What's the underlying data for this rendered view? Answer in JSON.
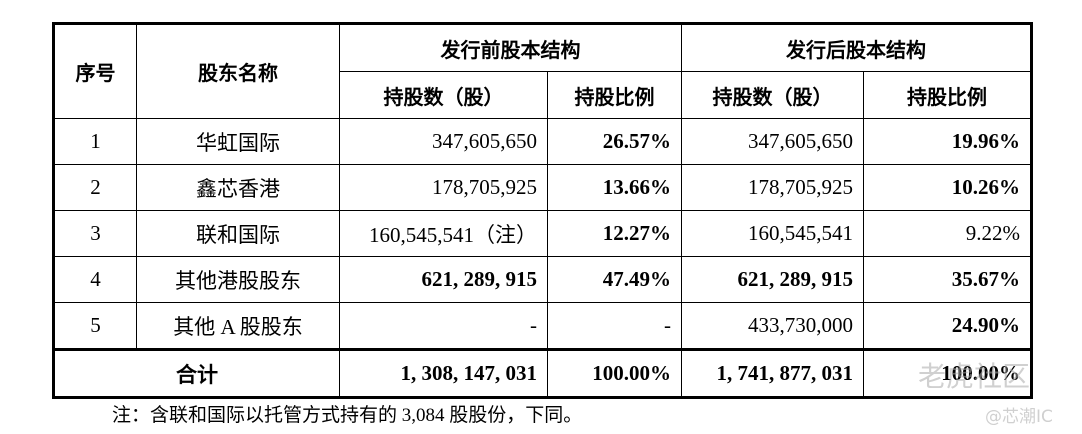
{
  "table": {
    "header": {
      "index": "序号",
      "name": "股东名称",
      "before": "发行前股本结构",
      "after": "发行后股本结构",
      "shares_before": "持股数（股）",
      "ratio_before": "持股比例",
      "shares_after": "持股数（股）",
      "ratio_after": "持股比例"
    },
    "rows": [
      [
        "1",
        "华虹国际",
        "347,605,650",
        "26.57%",
        "347,605,650",
        "19.96%"
      ],
      [
        "2",
        "鑫芯香港",
        "178,705,925",
        "13.66%",
        "178,705,925",
        "10.26%"
      ],
      [
        "3",
        "联和国际",
        "160,545,541（注）",
        "12.27%",
        "160,545,541",
        "9.22%"
      ],
      [
        "4",
        "其他港股股东",
        "621, 289, 915",
        "47.49%",
        "621, 289, 915",
        "35.67%"
      ],
      [
        "5",
        "其他 A 股股东",
        "-",
        "-",
        "433,730,000",
        "24.90%"
      ]
    ],
    "total": [
      "合计",
      "1, 308, 147, 031",
      "100.00%",
      "1, 741, 877, 031",
      "100.00%"
    ]
  },
  "footnote": "注：含联和国际以托管方式持有的 3,084 股股份，下同。",
  "watermarks": [
    "老虎社区",
    "@芯潮IC"
  ]
}
